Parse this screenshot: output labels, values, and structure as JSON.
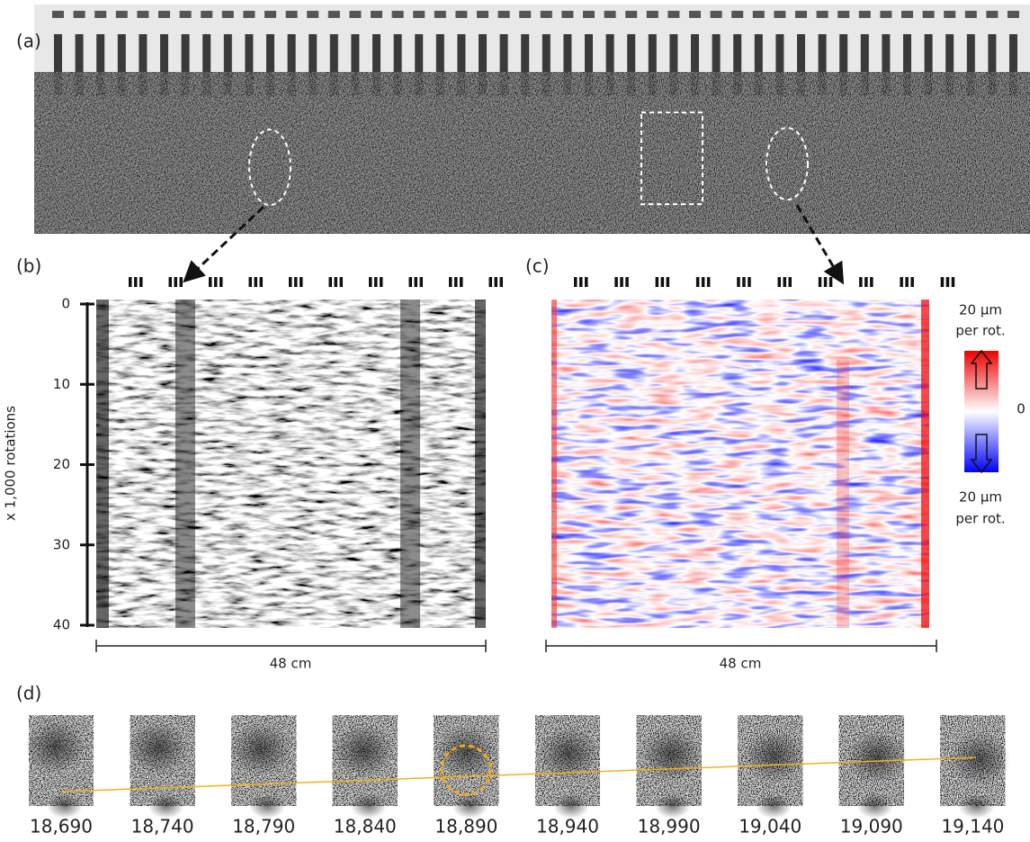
{
  "panels": {
    "a": {
      "label": "(a)"
    },
    "b": {
      "label": "(b)",
      "y_axis": {
        "label": "x 1,000 rotations",
        "ylim": [
          0,
          40
        ],
        "yticks": [
          0,
          10,
          20,
          30,
          40
        ]
      },
      "scale_bar": "48 cm"
    },
    "c": {
      "label": "(c)",
      "scale_bar": "48 cm",
      "colorbar": {
        "top": [
          "20 µm",
          "per rot."
        ],
        "middle": "0",
        "bottom": [
          "20 µm",
          "per rot."
        ]
      }
    },
    "d": {
      "label": "(d)",
      "frames": [
        "18,690",
        "18,740",
        "18,790",
        "18,840",
        "18,890",
        "18,940",
        "18,990",
        "19,040",
        "19,090",
        "19,140"
      ]
    }
  }
}
